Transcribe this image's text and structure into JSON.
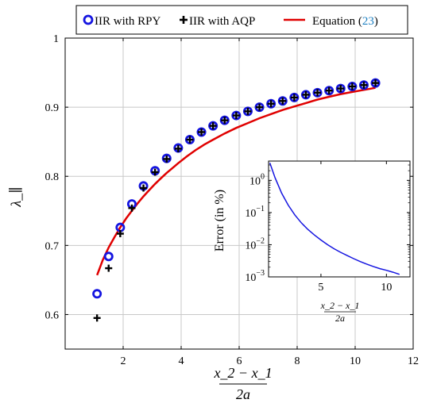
{
  "chart_data": [
    {
      "type": "scatter+line",
      "title": "",
      "xlabel": {
        "numerator": "x_2 − x_1",
        "denominator": "2a"
      },
      "ylabel": "λ_∥",
      "xlim": [
        0,
        12
      ],
      "ylim": [
        0.55,
        1.0
      ],
      "xticks": [
        "2",
        "4",
        "6",
        "8",
        "10",
        "12"
      ],
      "yticks": [
        "0.6",
        "0.7",
        "0.8",
        "0.9",
        "1"
      ],
      "grid": true,
      "legend": {
        "placement": "top",
        "entries": [
          {
            "label": "IIR with RPY"
          },
          {
            "label": "IIR with AQP"
          },
          {
            "label_prefix": "Equation (",
            "label_ref": "23",
            "label_suffix": ")"
          }
        ]
      },
      "series": [
        {
          "name": "IIR with RPY",
          "marker": "circle",
          "color": "#1515e0",
          "x": [
            1.1,
            1.5,
            1.9,
            2.3,
            2.7,
            3.1,
            3.5,
            3.9,
            4.3,
            4.7,
            5.1,
            5.5,
            5.9,
            6.3,
            6.7,
            7.1,
            7.5,
            7.9,
            8.3,
            8.7,
            9.1,
            9.5,
            9.9,
            10.3,
            10.7
          ],
          "y": [
            0.63,
            0.684,
            0.726,
            0.76,
            0.786,
            0.808,
            0.826,
            0.841,
            0.853,
            0.864,
            0.873,
            0.881,
            0.888,
            0.894,
            0.9,
            0.905,
            0.909,
            0.914,
            0.918,
            0.921,
            0.924,
            0.927,
            0.93,
            0.932,
            0.935
          ]
        },
        {
          "name": "IIR with AQP",
          "marker": "plus",
          "color": "#000000",
          "x": [
            1.1,
            1.5,
            1.9,
            2.3,
            2.7,
            3.1,
            3.5,
            3.9,
            4.3,
            4.7,
            5.1,
            5.5,
            5.9,
            6.3,
            6.7,
            7.1,
            7.5,
            7.9,
            8.3,
            8.7,
            9.1,
            9.5,
            9.9,
            10.3,
            10.7
          ],
          "y": [
            0.595,
            0.667,
            0.717,
            0.754,
            0.783,
            0.806,
            0.825,
            0.84,
            0.853,
            0.864,
            0.873,
            0.881,
            0.888,
            0.894,
            0.9,
            0.905,
            0.909,
            0.914,
            0.918,
            0.921,
            0.924,
            0.927,
            0.93,
            0.932,
            0.935
          ]
        },
        {
          "name": "Equation (23)",
          "marker": "line",
          "color": "#e00000",
          "x": [
            1.1,
            1.3,
            1.5,
            1.7,
            1.9,
            2.1,
            2.3,
            2.5,
            2.7,
            2.9,
            3.1,
            3.3,
            3.5,
            3.7,
            3.9,
            4.2,
            4.5,
            4.8,
            5.1,
            5.5,
            5.9,
            6.3,
            6.7,
            7.1,
            7.5,
            7.9,
            8.3,
            8.7,
            9.1,
            9.5,
            9.9,
            10.3,
            10.7
          ],
          "y": [
            0.657,
            0.679,
            0.697,
            0.712,
            0.726,
            0.739,
            0.75,
            0.761,
            0.771,
            0.78,
            0.789,
            0.797,
            0.805,
            0.812,
            0.819,
            0.829,
            0.838,
            0.846,
            0.853,
            0.862,
            0.87,
            0.877,
            0.884,
            0.89,
            0.896,
            0.901,
            0.906,
            0.911,
            0.915,
            0.919,
            0.922,
            0.925,
            0.928
          ]
        }
      ]
    },
    {
      "type": "line",
      "title": "",
      "xlabel": {
        "numerator": "x_2 − x_1",
        "denominator": "2a"
      },
      "ylabel": "Error (in %)",
      "xlim": [
        1,
        11.8
      ],
      "ylim_log10": [
        -3,
        0.6
      ],
      "yscale": "log",
      "xticks": [
        "5",
        "10"
      ],
      "yticks": [
        {
          "base": "10",
          "exp": "0"
        },
        {
          "base": "10",
          "exp": "−1"
        },
        {
          "base": "10",
          "exp": "−2"
        },
        {
          "base": "10",
          "exp": "−3"
        }
      ],
      "grid": false,
      "series": [
        {
          "name": "",
          "color": "#1515e0",
          "x": [
            1.1,
            1.5,
            2.0,
            2.5,
            3.0,
            3.5,
            4.0,
            4.5,
            5.0,
            5.5,
            6.0,
            6.5,
            7.0,
            7.5,
            8.0,
            8.5,
            9.0,
            9.5,
            10.0,
            10.5,
            11.0
          ],
          "y": [
            3.5,
            1.2,
            0.4,
            0.17,
            0.085,
            0.048,
            0.03,
            0.02,
            0.014,
            0.01,
            0.0075,
            0.0058,
            0.0046,
            0.0037,
            0.003,
            0.0025,
            0.0021,
            0.0018,
            0.0016,
            0.0014,
            0.0012
          ]
        }
      ]
    }
  ]
}
